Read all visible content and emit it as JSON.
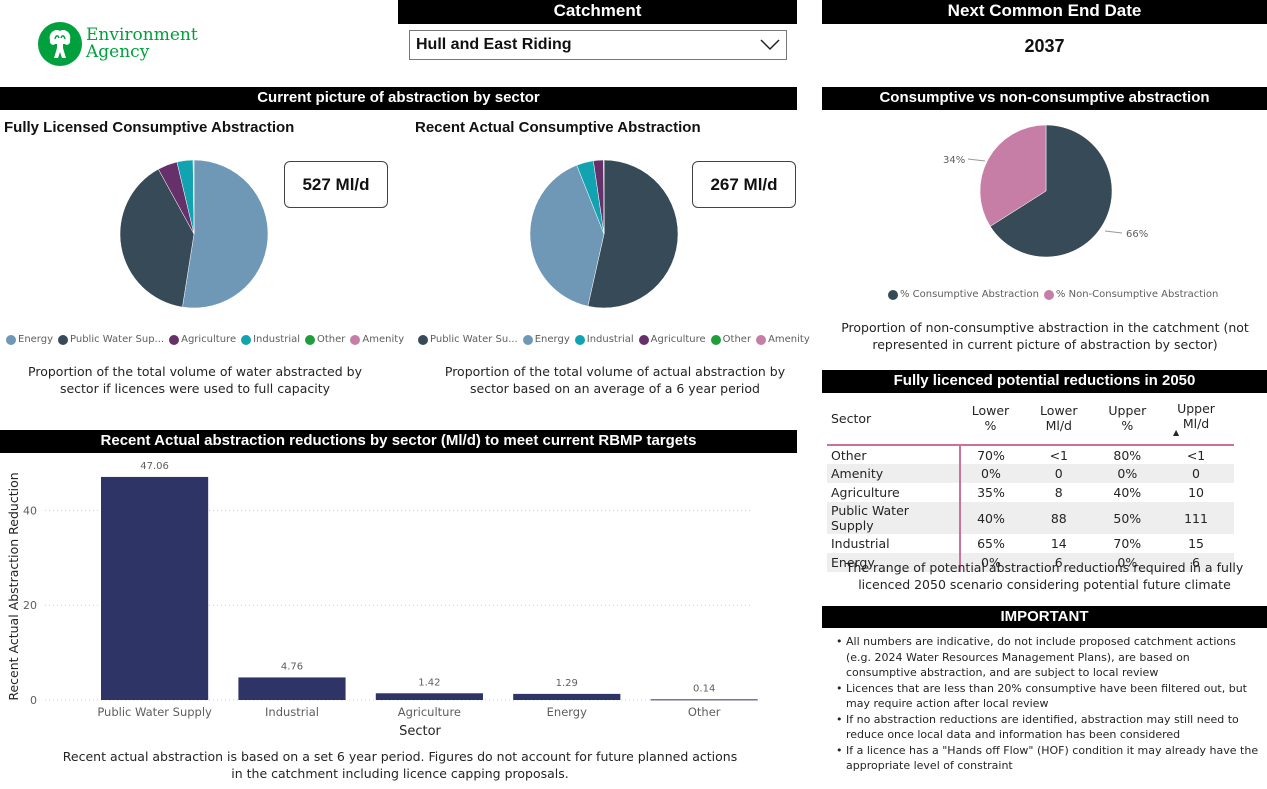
{
  "brand": {
    "logo_line1": "Environment",
    "logo_line2": "Agency",
    "color": "#00a03c"
  },
  "catchment": {
    "header": "Catchment",
    "selected": "Hull and East Riding"
  },
  "end_date": {
    "header": "Next Common End Date",
    "value": "2037"
  },
  "sector_section": {
    "header": "Current picture of abstraction by sector",
    "licensed": {
      "title": "Fully Licensed Consumptive Abstraction",
      "card_value": "527 Ml/d",
      "legend": [
        {
          "label": "Energy",
          "color": "#6f97b6"
        },
        {
          "label": "Public Water Sup...",
          "color": "#374a58"
        },
        {
          "label": "Agriculture",
          "color": "#66306a"
        },
        {
          "label": "Industrial",
          "color": "#12a3b0"
        },
        {
          "label": "Other",
          "color": "#1f9e3a"
        },
        {
          "label": "Amenity",
          "color": "#c67ea6"
        }
      ],
      "caption": "Proportion of the total volume of water abstracted by sector if licences were used to full capacity"
    },
    "actual": {
      "title": "Recent Actual Consumptive Abstraction",
      "card_value": "267 Ml/d",
      "legend": [
        {
          "label": "Public Water Su...",
          "color": "#374a58"
        },
        {
          "label": "Energy",
          "color": "#6f97b6"
        },
        {
          "label": "Industrial",
          "color": "#12a3b0"
        },
        {
          "label": "Agriculture",
          "color": "#66306a"
        },
        {
          "label": "Other",
          "color": "#1f9e3a"
        },
        {
          "label": "Amenity",
          "color": "#c67ea6"
        }
      ],
      "caption": "Proportion of the total volume of actual abstraction by sector based on an average of a 6 year period"
    }
  },
  "consumptive_section": {
    "header": "Consumptive vs non-consumptive abstraction",
    "label_consumptive": "66%",
    "label_nonconsumptive": "34%",
    "legend": [
      {
        "label": "% Consumptive Abstraction",
        "color": "#374a58"
      },
      {
        "label": "% Non-Consumptive Abstraction",
        "color": "#c67ea6"
      }
    ],
    "caption": "Proportion of non-consumptive abstraction in the catchment (not represented in current picture of abstraction by sector)"
  },
  "reductions_2050": {
    "header": "Fully licenced potential reductions in 2050",
    "columns": [
      "Sector",
      "Lower %",
      "Lower Ml/d",
      "Upper %",
      "Upper Ml/d"
    ],
    "rows": [
      [
        "Other",
        "70%",
        "<1",
        "80%",
        "<1"
      ],
      [
        "Amenity",
        "0%",
        "0",
        "0%",
        "0"
      ],
      [
        "Agriculture",
        "35%",
        "8",
        "40%",
        "10"
      ],
      [
        "Public Water Supply",
        "40%",
        "88",
        "50%",
        "111"
      ],
      [
        "Industrial",
        "65%",
        "14",
        "70%",
        "15"
      ],
      [
        "Energy",
        "0%",
        "6",
        "0%",
        "6"
      ]
    ],
    "caption": "The range of potential abstraction reductions required in a fully licenced 2050 scenario considering potential future climate"
  },
  "important": {
    "header": "IMPORTANT",
    "notes": [
      "All numbers are indicative, do not include proposed catchment actions (e.g. 2024 Water Resources Management Plans), are based on consumptive abstraction, and are subject to local review",
      "Licences that are less than 20% consumptive have been filtered out, but may require action after local review",
      "If no abstraction reductions are identified, abstraction may still need to reduce once local data and information has been considered",
      "If a licence has a \"Hands off Flow\" (HOF) condition it may already have the appropriate level of constraint"
    ]
  },
  "bar_section": {
    "header": "Recent Actual abstraction reductions by sector (Ml/d) to meet current RBMP targets",
    "caption": "Recent actual abstraction is based on a set 6 year period. Figures do not account for future planned actions in the catchment including licence capping proposals."
  },
  "chart_data": [
    {
      "type": "bar",
      "title": "Recent Actual abstraction reductions by sector (Ml/d) to meet current RBMP targets",
      "categories": [
        "Public Water Supply",
        "Industrial",
        "Agriculture",
        "Energy",
        "Other"
      ],
      "values": [
        47.06,
        4.76,
        1.42,
        1.29,
        0.14
      ],
      "value_labels": [
        "47.06",
        "4.76",
        "1.42",
        "1.29",
        "0.14"
      ],
      "xlabel": "Sector",
      "ylabel": "Recent Actual Abstraction Reduction",
      "ylim": [
        0,
        50
      ],
      "yticks": [
        0,
        20,
        40
      ],
      "grid": true,
      "color": "#2e3566"
    },
    {
      "type": "pie",
      "title": "Fully Licensed Consumptive Abstraction",
      "labels": [
        "Energy",
        "Public Water Supply",
        "Agriculture",
        "Industrial",
        "Other",
        "Amenity"
      ],
      "values": [
        52.5,
        39.5,
        4.3,
        3.5,
        0.1,
        0.1
      ],
      "colors": [
        "#6f97b6",
        "#374a58",
        "#66306a",
        "#12a3b0",
        "#1f9e3a",
        "#c67ea6"
      ]
    },
    {
      "type": "pie",
      "title": "Recent Actual Consumptive Abstraction",
      "labels": [
        "Public Water Supply",
        "Energy",
        "Industrial",
        "Agriculture",
        "Other",
        "Amenity"
      ],
      "values": [
        53.5,
        40.5,
        3.7,
        2.2,
        0.05,
        0.05
      ],
      "colors": [
        "#374a58",
        "#6f97b6",
        "#12a3b0",
        "#66306a",
        "#1f9e3a",
        "#c67ea6"
      ]
    },
    {
      "type": "pie",
      "title": "Consumptive vs non-consumptive abstraction",
      "labels": [
        "% Consumptive Abstraction",
        "% Non-Consumptive Abstraction"
      ],
      "values": [
        66,
        34
      ],
      "colors": [
        "#374a58",
        "#c67ea6"
      ]
    }
  ]
}
